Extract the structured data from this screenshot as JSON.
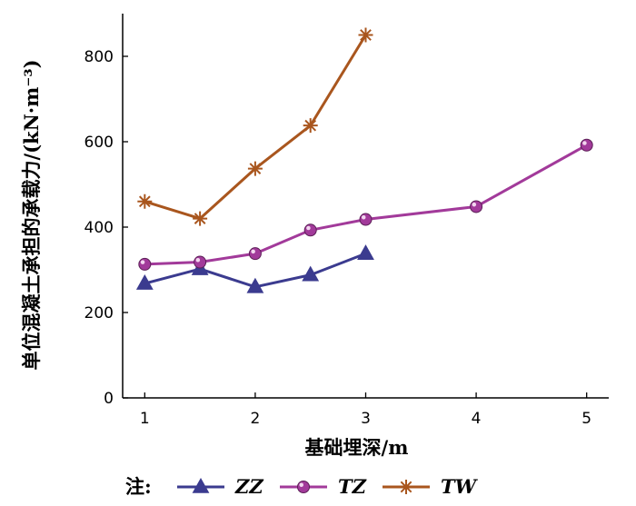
{
  "chart_data": {
    "type": "line",
    "xlabel": "基础埋深/m",
    "ylabel": "单位混凝土承担的承载力/(kN·m⁻³)",
    "xlim": [
      0.8,
      5.2
    ],
    "ylim": [
      0,
      900
    ],
    "xticks": [
      1,
      2,
      3,
      4,
      5
    ],
    "yticks": [
      0,
      200,
      400,
      600,
      800
    ],
    "grid": false,
    "legend": {
      "placement": "bottom",
      "prefix": "注:"
    },
    "series": [
      {
        "name": "ZZ",
        "marker": "triangle",
        "color": "#3b3b8f",
        "x": [
          1,
          1.5,
          2,
          2.5,
          3
        ],
        "values": [
          268,
          302,
          260,
          288,
          338
        ]
      },
      {
        "name": "TZ",
        "marker": "circle",
        "color": "#a23a9a",
        "x": [
          1,
          1.5,
          2,
          2.5,
          3,
          4,
          5
        ],
        "values": [
          313,
          318,
          338,
          393,
          418,
          448,
          592
        ]
      },
      {
        "name": "TW",
        "marker": "star",
        "color": "#a9561e",
        "x": [
          1,
          1.5,
          2,
          2.5,
          3
        ],
        "values": [
          460,
          420,
          537,
          638,
          850
        ]
      }
    ]
  }
}
